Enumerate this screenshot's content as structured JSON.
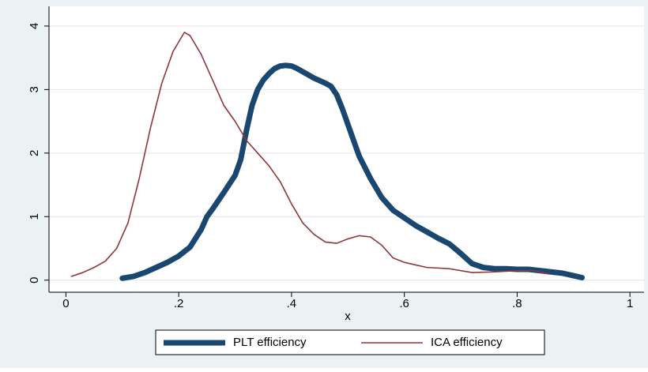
{
  "chart_data": {
    "type": "line",
    "x_label": "x",
    "xlim": [
      -0.03,
      1.025
    ],
    "ylim": [
      -0.19,
      4.31
    ],
    "xticks": [
      0,
      {
        "value": 0.2,
        "label": ".2"
      },
      {
        "value": 0.4,
        "label": ".4"
      },
      {
        "value": 0.6,
        "label": ".6"
      },
      {
        "value": 0.8,
        "label": ".8"
      },
      1
    ],
    "yticks": [
      0,
      1,
      2,
      3,
      4
    ],
    "grid": true,
    "legend": "bottom",
    "series": [
      {
        "name": "PLT efficiency",
        "color": "#1a476f",
        "width": 7,
        "x": [
          0.1,
          0.12,
          0.14,
          0.16,
          0.18,
          0.2,
          0.22,
          0.24,
          0.25,
          0.26,
          0.28,
          0.3,
          0.31,
          0.32,
          0.33,
          0.34,
          0.35,
          0.36,
          0.37,
          0.38,
          0.39,
          0.4,
          0.41,
          0.42,
          0.44,
          0.46,
          0.47,
          0.48,
          0.49,
          0.5,
          0.51,
          0.52,
          0.54,
          0.56,
          0.58,
          0.6,
          0.62,
          0.64,
          0.66,
          0.68,
          0.7,
          0.72,
          0.74,
          0.76,
          0.78,
          0.8,
          0.82,
          0.84,
          0.86,
          0.88,
          0.9,
          0.915
        ],
        "values": [
          0.03,
          0.06,
          0.12,
          0.2,
          0.28,
          0.38,
          0.52,
          0.8,
          1.0,
          1.12,
          1.38,
          1.65,
          1.9,
          2.35,
          2.75,
          3.0,
          3.15,
          3.25,
          3.33,
          3.37,
          3.38,
          3.37,
          3.33,
          3.28,
          3.18,
          3.1,
          3.05,
          2.92,
          2.7,
          2.45,
          2.2,
          1.95,
          1.6,
          1.3,
          1.1,
          0.98,
          0.86,
          0.76,
          0.66,
          0.57,
          0.42,
          0.26,
          0.2,
          0.18,
          0.18,
          0.17,
          0.17,
          0.15,
          0.13,
          0.11,
          0.07,
          0.04
        ]
      },
      {
        "name": "ICA efficiency",
        "color": "#90353b",
        "width": 1.6,
        "x": [
          0.01,
          0.03,
          0.05,
          0.07,
          0.09,
          0.11,
          0.13,
          0.15,
          0.17,
          0.19,
          0.21,
          0.22,
          0.24,
          0.26,
          0.28,
          0.3,
          0.32,
          0.34,
          0.36,
          0.38,
          0.4,
          0.42,
          0.44,
          0.46,
          0.48,
          0.5,
          0.52,
          0.54,
          0.56,
          0.58,
          0.6,
          0.62,
          0.64,
          0.68,
          0.72,
          0.76,
          0.8,
          0.83,
          0.855
        ],
        "values": [
          0.06,
          0.12,
          0.2,
          0.3,
          0.5,
          0.9,
          1.6,
          2.4,
          3.1,
          3.6,
          3.9,
          3.85,
          3.55,
          3.15,
          2.75,
          2.5,
          2.2,
          2.0,
          1.8,
          1.55,
          1.2,
          0.9,
          0.72,
          0.6,
          0.58,
          0.65,
          0.7,
          0.68,
          0.55,
          0.35,
          0.28,
          0.24,
          0.2,
          0.18,
          0.12,
          0.13,
          0.15,
          0.15,
          0.1
        ]
      }
    ]
  }
}
